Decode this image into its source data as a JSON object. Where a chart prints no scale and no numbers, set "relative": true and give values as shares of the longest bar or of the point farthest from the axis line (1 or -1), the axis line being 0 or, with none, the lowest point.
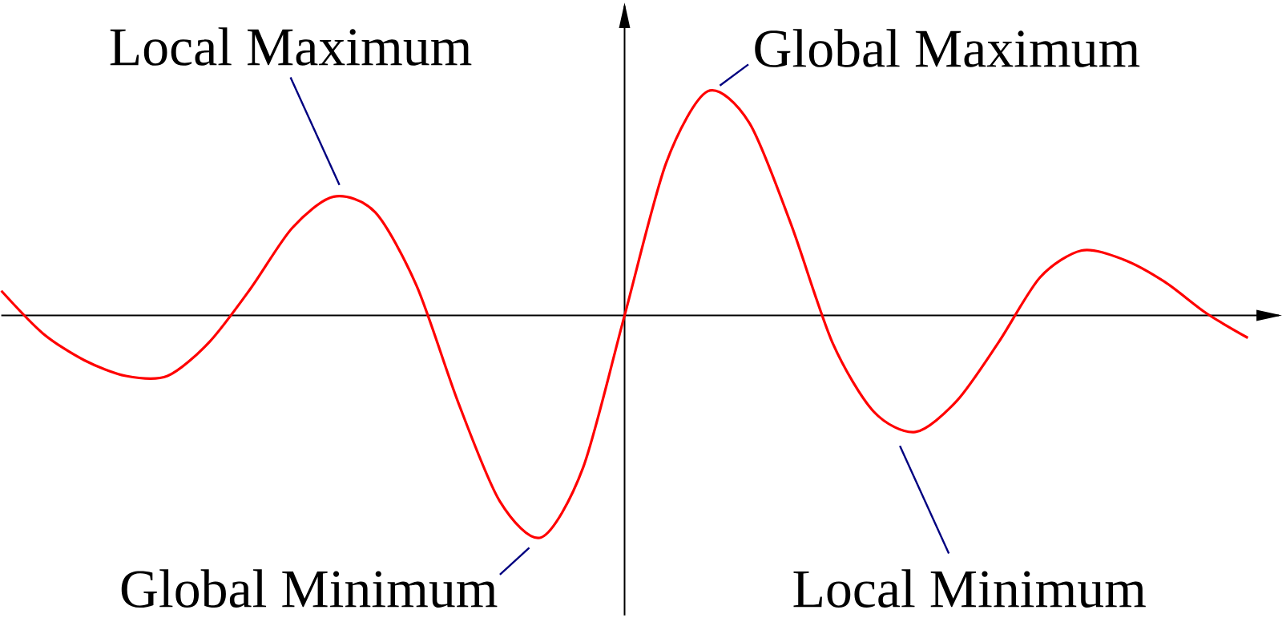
{
  "chart_data": {
    "type": "line",
    "relative": true,
    "color": "#ff0000",
    "categories": [
      null,
      null,
      null,
      null,
      null,
      null,
      null,
      null,
      null,
      null,
      null,
      null,
      null,
      null,
      null,
      null,
      null,
      null,
      null,
      null,
      null,
      null,
      null,
      null,
      null,
      null,
      null,
      null,
      null,
      null,
      null
    ],
    "values": [
      0.11,
      -0.08,
      -0.2,
      -0.27,
      -0.27,
      -0.12,
      0.12,
      0.39,
      0.53,
      0.46,
      0.13,
      -0.39,
      -0.83,
      -0.99,
      -0.68,
      0,
      0.68,
      1.0,
      0.86,
      0.41,
      -0.12,
      -0.43,
      -0.52,
      -0.38,
      -0.12,
      0.17,
      0.29,
      0.25,
      0.15,
      0.01,
      -0.1
    ],
    "annotations": [
      "Local Maximum",
      "Global Maximum",
      "Global Minimum",
      "Local Minimum"
    ]
  }
}
